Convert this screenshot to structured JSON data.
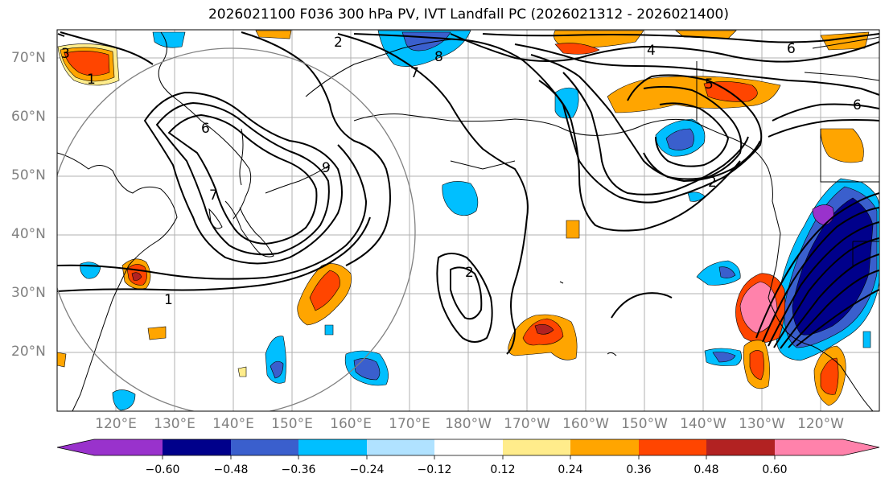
{
  "title": "2026021100 F036 300 hPa PV, IVT Landfall PC (2026021312 - 2026021400)",
  "axes": {
    "lat_labels": [
      "70°N",
      "60°N",
      "50°N",
      "40°N",
      "30°N",
      "20°N"
    ],
    "lon_labels": [
      "120°E",
      "130°E",
      "140°E",
      "150°E",
      "160°E",
      "170°E",
      "180°W",
      "170°W",
      "160°W",
      "150°W",
      "140°W",
      "130°W",
      "120°W"
    ]
  },
  "contour_labels": [
    "2",
    "4",
    "5",
    "6",
    "7",
    "8",
    "1",
    "2",
    "3",
    "7",
    "6",
    "9",
    "2",
    "1",
    "6"
  ],
  "colorbar": {
    "ticks": [
      "−0.60",
      "−0.48",
      "−0.36",
      "−0.24",
      "−0.12",
      "0.12",
      "0.24",
      "0.36",
      "0.48",
      "0.60"
    ],
    "colors": [
      "#9932cc",
      "#00008b",
      "#3a5fcd",
      "#00bfff",
      "#b0e2ff",
      "#ffffff",
      "#ffec8b",
      "#ffa500",
      "#ff4500",
      "#b22222",
      "#ff82ab"
    ]
  }
}
